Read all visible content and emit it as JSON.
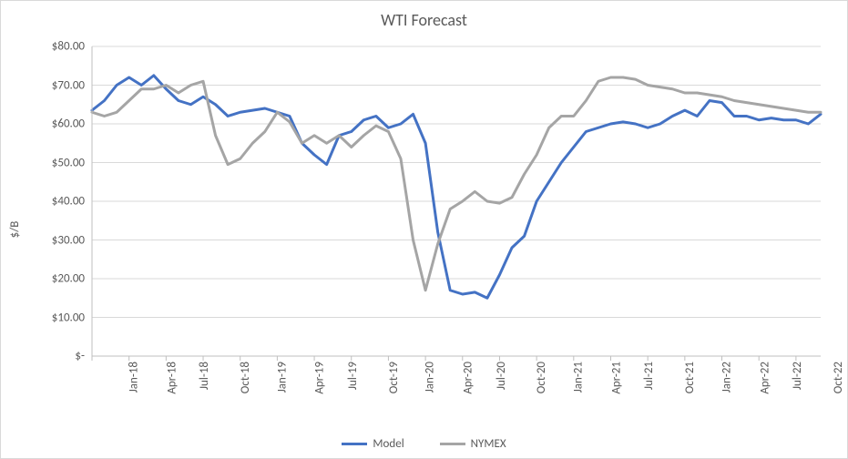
{
  "chart": {
    "type": "line",
    "title": "WTI Forecast",
    "title_fontsize": 18,
    "ylabel": "$/B",
    "label_fontsize": 13,
    "background_color": "#ffffff",
    "border_color": "#d9d9d9",
    "grid_color": "#d9d9d9",
    "axis_color": "#bfbfbf",
    "text_color": "#595959",
    "font_family": "Calibri",
    "ylim": [
      0,
      80
    ],
    "ytick_step": 10,
    "ytick_labels": [
      "$-",
      "$10.00",
      "$20.00",
      "$30.00",
      "$40.00",
      "$50.00",
      "$60.00",
      "$70.00",
      "$80.00"
    ],
    "categories": [
      "Jan-18",
      "Feb-18",
      "Mar-18",
      "Apr-18",
      "May-18",
      "Jun-18",
      "Jul-18",
      "Aug-18",
      "Sep-18",
      "Oct-18",
      "Nov-18",
      "Dec-18",
      "Jan-19",
      "Feb-19",
      "Mar-19",
      "Apr-19",
      "May-19",
      "Jun-19",
      "Jul-19",
      "Aug-19",
      "Sep-19",
      "Oct-19",
      "Nov-19",
      "Dec-19",
      "Jan-20",
      "Feb-20",
      "Mar-20",
      "Apr-20",
      "May-20",
      "Jun-20",
      "Jul-20",
      "Aug-20",
      "Sep-20",
      "Oct-20",
      "Nov-20",
      "Dec-20",
      "Jan-21",
      "Feb-21",
      "Mar-21",
      "Apr-21",
      "May-21",
      "Jun-21",
      "Jul-21",
      "Aug-21",
      "Sep-21",
      "Oct-21",
      "Nov-21",
      "Dec-21",
      "Jan-22",
      "Feb-22",
      "Mar-22",
      "Apr-22",
      "May-22",
      "Jun-22",
      "Jul-22",
      "Aug-22",
      "Sep-22",
      "Oct-22",
      "Nov-22",
      "Dec-22"
    ],
    "xtick_every": 3,
    "xtick_labels": [
      "Jan-18",
      "Apr-18",
      "Jul-18",
      "Oct-18",
      "Jan-19",
      "Apr-19",
      "Jul-19",
      "Oct-19",
      "Jan-20",
      "Apr-20",
      "Jul-20",
      "Oct-20",
      "Jan-21",
      "Apr-21",
      "Jul-21",
      "Oct-21",
      "Jan-22",
      "Apr-22",
      "Jul-22",
      "Oct-22"
    ],
    "legend_position": "bottom",
    "line_width": 3,
    "series": [
      {
        "name": "Model",
        "color": "#4472c4",
        "values": [
          63.5,
          66.0,
          70.0,
          72.0,
          70.0,
          72.5,
          69.0,
          66.0,
          65.0,
          67.0,
          65.0,
          62.0,
          63.0,
          63.5,
          64.0,
          63.0,
          62.0,
          55.0,
          52.0,
          49.5,
          57.0,
          58.0,
          61.0,
          62.0,
          59.0,
          60.0,
          62.5,
          55.0,
          32.0,
          17.0,
          16.0,
          16.5,
          15.0,
          21.0,
          28.0,
          31.0,
          40.0,
          45.0,
          50.0,
          54.0,
          58.0,
          59.0,
          60.0,
          60.5,
          60.0,
          59.0,
          60.0,
          62.0,
          63.5,
          62.0,
          66.0,
          65.5,
          62.0,
          62.0,
          61.0,
          61.5,
          61.0,
          61.0,
          60.0,
          62.5
        ]
      },
      {
        "name": "NYMEX",
        "color": "#a5a5a5",
        "values": [
          63.0,
          62.0,
          63.0,
          66.0,
          69.0,
          69.0,
          70.0,
          68.0,
          70.0,
          71.0,
          57.0,
          49.5,
          51.0,
          55.0,
          58.0,
          63.0,
          60.5,
          55.0,
          57.0,
          55.0,
          57.0,
          54.0,
          57.0,
          59.5,
          58.0,
          51.0,
          30.0,
          17.0,
          29.0,
          38.0,
          40.0,
          42.5,
          40.0,
          39.5,
          41.0,
          47.0,
          52.0,
          59.0,
          62.0,
          62.0,
          66.0,
          71.0,
          72.0,
          72.0,
          71.5,
          70.0,
          69.5,
          69.0,
          68.0,
          68.0,
          67.5,
          67.0,
          66.0,
          65.5,
          65.0,
          64.5,
          64.0,
          63.5,
          63.0,
          63.0
        ]
      }
    ]
  }
}
